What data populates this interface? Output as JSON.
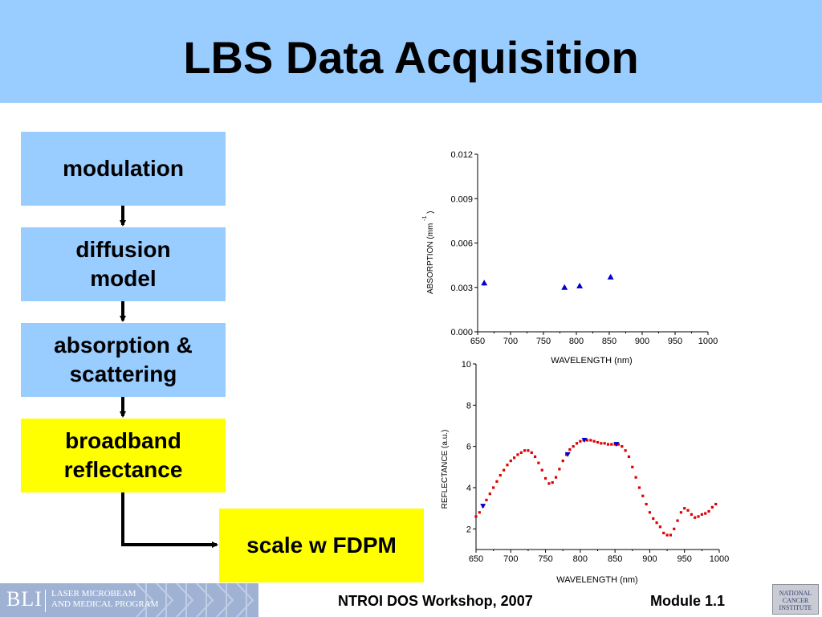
{
  "slide": {
    "title": "LBS Data Acquisition",
    "header_color": "#99ccff"
  },
  "flow": {
    "boxes": [
      {
        "label": "modulation",
        "color": "#99ccff"
      },
      {
        "label": "diffusion\nmodel",
        "color": "#99ccff"
      },
      {
        "label": "absorption &\nscattering",
        "color": "#99ccff"
      },
      {
        "label": "broadband\nreflectance",
        "color": "#ffff00"
      },
      {
        "label": "scale w FDPM",
        "color": "#ffff00"
      }
    ]
  },
  "chart_data": [
    {
      "type": "scatter",
      "xlabel": "WAVELENGTH (nm)",
      "ylabel_main": "ABSORPTION (mm",
      "ylabel_sup": "-1",
      "ylabel_close": ")",
      "xlim": [
        650,
        1000
      ],
      "ylim": [
        0,
        0.012
      ],
      "xticks": [
        "650",
        "700",
        "750",
        "800",
        "850",
        "900",
        "950",
        "1000"
      ],
      "yticks": [
        "0.000",
        "0.003",
        "0.006",
        "0.009",
        "0.012"
      ],
      "marker_color": "#0000cc",
      "series": [
        {
          "x": [
            660,
            782,
            805,
            852
          ],
          "y": [
            0.0033,
            0.003,
            0.0031,
            0.0037
          ],
          "err": [
            0.0002,
            0.0001,
            0.0001,
            0.0001
          ]
        }
      ]
    },
    {
      "type": "scatter",
      "xlabel": "WAVELENGTH (nm)",
      "ylabel": "REFLECTANCE (a.u.)",
      "xlim": [
        650,
        1000
      ],
      "ylim": [
        1,
        10
      ],
      "xticks": [
        "650",
        "700",
        "750",
        "800",
        "850",
        "900",
        "950",
        "1000"
      ],
      "yticks": [
        "2",
        "4",
        "6",
        "8",
        "10"
      ],
      "series": [
        {
          "color": "#dd0000",
          "x": [
            650,
            655,
            660,
            665,
            670,
            675,
            680,
            685,
            690,
            695,
            700,
            705,
            710,
            715,
            720,
            725,
            730,
            735,
            740,
            745,
            750,
            755,
            760,
            765,
            770,
            775,
            780,
            785,
            790,
            795,
            800,
            805,
            810,
            815,
            820,
            825,
            830,
            835,
            840,
            845,
            850,
            855,
            860,
            865,
            870,
            875,
            880,
            885,
            890,
            895,
            900,
            905,
            910,
            915,
            920,
            925,
            930,
            935,
            940,
            945,
            950,
            955,
            960,
            965,
            970,
            975,
            980,
            985,
            990,
            995
          ],
          "y": [
            2.6,
            2.8,
            3.1,
            3.4,
            3.7,
            4.0,
            4.3,
            4.6,
            4.85,
            5.1,
            5.3,
            5.45,
            5.6,
            5.7,
            5.8,
            5.8,
            5.7,
            5.5,
            5.2,
            4.85,
            4.45,
            4.2,
            4.25,
            4.5,
            4.9,
            5.3,
            5.6,
            5.85,
            6.0,
            6.15,
            6.25,
            6.3,
            6.3,
            6.3,
            6.25,
            6.2,
            6.15,
            6.15,
            6.1,
            6.1,
            6.1,
            6.1,
            6.0,
            5.8,
            5.5,
            5.0,
            4.5,
            4.0,
            3.6,
            3.2,
            2.8,
            2.5,
            2.3,
            2.1,
            1.8,
            1.7,
            1.7,
            2.0,
            2.4,
            2.8,
            3.0,
            2.9,
            2.7,
            2.55,
            2.6,
            2.7,
            2.75,
            2.85,
            3.05,
            3.2
          ]
        },
        {
          "color": "#0000cc",
          "x": [
            660,
            782,
            806,
            852
          ],
          "y": [
            3.1,
            5.6,
            6.3,
            6.1
          ]
        }
      ]
    }
  ],
  "footer": {
    "logo_abbr": "BLI",
    "logo_text": "LASER MICROBEAM\nAND MEDICAL PROGRAM",
    "center": "NTROI DOS Workshop, 2007",
    "right": "Module 1.1",
    "nci_logo_text": "NATIONAL\nCANCER\nINSTITUTE"
  }
}
